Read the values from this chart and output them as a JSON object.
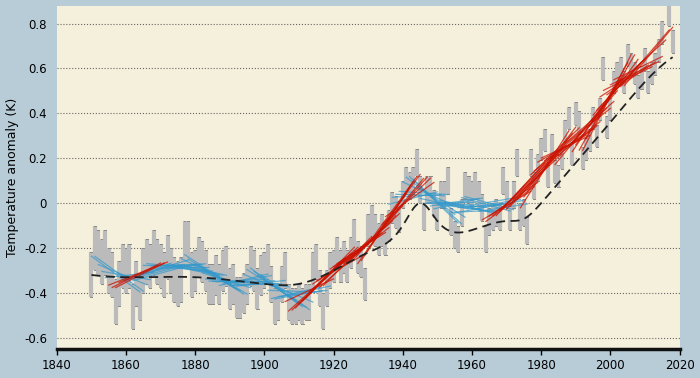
{
  "ylabel": "Temperature anomaly (K)",
  "xlim": [
    1840,
    2020
  ],
  "ylim": [
    -0.65,
    0.88
  ],
  "yticks": [
    -0.6,
    -0.4,
    -0.2,
    0,
    0.2,
    0.4,
    0.6,
    0.8
  ],
  "xticks": [
    1840,
    1860,
    1880,
    1900,
    1920,
    1940,
    1960,
    1980,
    2000,
    2020
  ],
  "background_color": "#f5f0dc",
  "outer_background": "#b8ccd8",
  "bar_color": "#bbbbbb",
  "bar_edge_color": "#888888",
  "dashed_line_color": "#222222",
  "red_line_color": "#cc1100",
  "blue_line_color": "#3399cc",
  "window": 15,
  "annual_data": {
    "years": [
      1850,
      1851,
      1852,
      1853,
      1854,
      1855,
      1856,
      1857,
      1858,
      1859,
      1860,
      1861,
      1862,
      1863,
      1864,
      1865,
      1866,
      1867,
      1868,
      1869,
      1870,
      1871,
      1872,
      1873,
      1874,
      1875,
      1876,
      1877,
      1878,
      1879,
      1880,
      1881,
      1882,
      1883,
      1884,
      1885,
      1886,
      1887,
      1888,
      1889,
      1890,
      1891,
      1892,
      1893,
      1894,
      1895,
      1896,
      1897,
      1898,
      1899,
      1900,
      1901,
      1902,
      1903,
      1904,
      1905,
      1906,
      1907,
      1908,
      1909,
      1910,
      1911,
      1912,
      1913,
      1914,
      1915,
      1916,
      1917,
      1918,
      1919,
      1920,
      1921,
      1922,
      1923,
      1924,
      1925,
      1926,
      1927,
      1928,
      1929,
      1930,
      1931,
      1932,
      1933,
      1934,
      1935,
      1936,
      1937,
      1938,
      1939,
      1940,
      1941,
      1942,
      1943,
      1944,
      1945,
      1946,
      1947,
      1948,
      1949,
      1950,
      1951,
      1952,
      1953,
      1954,
      1955,
      1956,
      1957,
      1958,
      1959,
      1960,
      1961,
      1962,
      1963,
      1964,
      1965,
      1966,
      1967,
      1968,
      1969,
      1970,
      1971,
      1972,
      1973,
      1974,
      1975,
      1976,
      1977,
      1978,
      1979,
      1980,
      1981,
      1982,
      1983,
      1984,
      1985,
      1986,
      1987,
      1988,
      1989,
      1990,
      1991,
      1992,
      1993,
      1994,
      1995,
      1996,
      1997,
      1998,
      1999,
      2000,
      2001,
      2002,
      2003,
      2004,
      2005,
      2006,
      2007,
      2008,
      2009,
      2010,
      2011,
      2012,
      2013,
      2014,
      2015,
      2016,
      2017,
      2018
    ],
    "values": [
      -0.32,
      -0.2,
      -0.22,
      -0.26,
      -0.22,
      -0.3,
      -0.32,
      -0.44,
      -0.36,
      -0.28,
      -0.3,
      -0.28,
      -0.46,
      -0.36,
      -0.42,
      -0.3,
      -0.26,
      -0.28,
      -0.22,
      -0.26,
      -0.28,
      -0.32,
      -0.24,
      -0.3,
      -0.34,
      -0.36,
      -0.34,
      -0.18,
      -0.18,
      -0.32,
      -0.3,
      -0.24,
      -0.26,
      -0.3,
      -0.36,
      -0.36,
      -0.32,
      -0.36,
      -0.3,
      -0.28,
      -0.38,
      -0.36,
      -0.42,
      -0.42,
      -0.4,
      -0.36,
      -0.28,
      -0.3,
      -0.38,
      -0.32,
      -0.3,
      -0.26,
      -0.36,
      -0.46,
      -0.44,
      -0.36,
      -0.3,
      -0.44,
      -0.46,
      -0.46,
      -0.44,
      -0.46,
      -0.44,
      -0.44,
      -0.3,
      -0.26,
      -0.38,
      -0.48,
      -0.38,
      -0.3,
      -0.28,
      -0.22,
      -0.28,
      -0.24,
      -0.28,
      -0.22,
      -0.14,
      -0.24,
      -0.26,
      -0.36,
      -0.12,
      -0.08,
      -0.12,
      -0.16,
      -0.12,
      -0.16,
      -0.1,
      -0.02,
      -0.04,
      -0.06,
      0.04,
      0.1,
      0.08,
      0.1,
      0.18,
      0.06,
      -0.06,
      0.06,
      0.06,
      0.0,
      -0.06,
      0.04,
      0.04,
      0.1,
      -0.08,
      -0.14,
      -0.16,
      -0.04,
      0.08,
      0.06,
      0.04,
      0.08,
      0.04,
      -0.02,
      -0.16,
      -0.08,
      -0.06,
      -0.04,
      -0.06,
      0.1,
      0.04,
      -0.06,
      0.04,
      0.18,
      -0.06,
      -0.04,
      -0.12,
      0.18,
      0.08,
      0.16,
      0.24,
      0.28,
      0.12,
      0.26,
      0.14,
      0.12,
      0.2,
      0.32,
      0.38,
      0.22,
      0.4,
      0.36,
      0.2,
      0.24,
      0.28,
      0.38,
      0.3,
      0.42,
      0.6,
      0.34,
      0.42,
      0.54,
      0.58,
      0.6,
      0.54,
      0.66,
      0.62,
      0.58,
      0.52,
      0.56,
      0.64,
      0.54,
      0.58,
      0.62,
      0.68,
      0.76,
      0.94,
      0.84,
      0.72
    ],
    "uncertainties": [
      0.1,
      0.1,
      0.1,
      0.1,
      0.1,
      0.1,
      0.1,
      0.1,
      0.1,
      0.1,
      0.1,
      0.1,
      0.1,
      0.1,
      0.1,
      0.1,
      0.1,
      0.1,
      0.1,
      0.1,
      0.1,
      0.1,
      0.1,
      0.1,
      0.1,
      0.1,
      0.1,
      0.1,
      0.1,
      0.1,
      0.09,
      0.09,
      0.09,
      0.09,
      0.09,
      0.09,
      0.09,
      0.09,
      0.09,
      0.09,
      0.09,
      0.09,
      0.09,
      0.09,
      0.09,
      0.09,
      0.09,
      0.09,
      0.09,
      0.09,
      0.08,
      0.08,
      0.08,
      0.08,
      0.08,
      0.08,
      0.08,
      0.08,
      0.08,
      0.08,
      0.08,
      0.08,
      0.08,
      0.08,
      0.08,
      0.08,
      0.08,
      0.08,
      0.08,
      0.08,
      0.07,
      0.07,
      0.07,
      0.07,
      0.07,
      0.07,
      0.07,
      0.07,
      0.07,
      0.07,
      0.07,
      0.07,
      0.07,
      0.07,
      0.07,
      0.07,
      0.07,
      0.07,
      0.07,
      0.07,
      0.06,
      0.06,
      0.06,
      0.06,
      0.06,
      0.06,
      0.06,
      0.06,
      0.06,
      0.06,
      0.06,
      0.06,
      0.06,
      0.06,
      0.06,
      0.06,
      0.06,
      0.06,
      0.06,
      0.06,
      0.06,
      0.06,
      0.06,
      0.06,
      0.06,
      0.06,
      0.06,
      0.06,
      0.06,
      0.06,
      0.06,
      0.06,
      0.06,
      0.06,
      0.06,
      0.06,
      0.06,
      0.06,
      0.06,
      0.06,
      0.05,
      0.05,
      0.05,
      0.05,
      0.05,
      0.05,
      0.05,
      0.05,
      0.05,
      0.05,
      0.05,
      0.05,
      0.05,
      0.05,
      0.05,
      0.05,
      0.05,
      0.05,
      0.05,
      0.05,
      0.05,
      0.05,
      0.05,
      0.05,
      0.05,
      0.05,
      0.05,
      0.05,
      0.05,
      0.05,
      0.05,
      0.05,
      0.05,
      0.05,
      0.05,
      0.05,
      0.05,
      0.05,
      0.05
    ]
  }
}
